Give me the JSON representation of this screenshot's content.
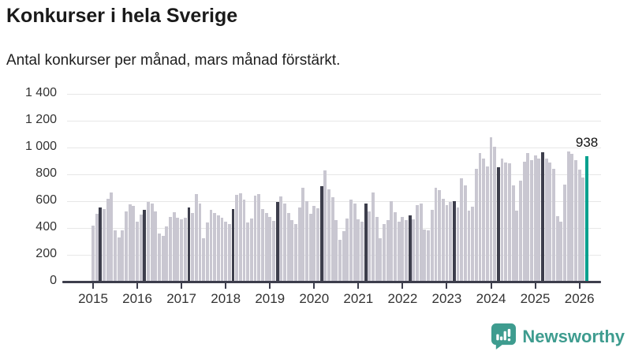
{
  "header": {
    "title": "Konkurser i hela Sverige",
    "subtitle": "Antal konkurser per månad, mars månad förstärkt."
  },
  "chart_data": {
    "type": "bar",
    "title": "Konkurser i hela Sverige",
    "subtitle": "Antal konkurser per månad, mars månad förstärkt.",
    "ylim": [
      0,
      1400
    ],
    "ytick_step": 200,
    "ytick_labels": [
      "0",
      "200",
      "400",
      "600",
      "800",
      "1 000",
      "1 200",
      "1 400"
    ],
    "grid": true,
    "start_month": "2015-01",
    "end_month": "2026-03",
    "x_tick_years": [
      "2015",
      "2016",
      "2017",
      "2018",
      "2019",
      "2020",
      "2021",
      "2022",
      "2023",
      "2024",
      "2025",
      "2026"
    ],
    "highlighted_month": "mars",
    "last_value_label": "938",
    "series": [
      {
        "name": "Antal konkurser per månad",
        "values": [
          420,
          505,
          555,
          540,
          615,
          665,
          385,
          330,
          380,
          525,
          575,
          565,
          445,
          500,
          535,
          595,
          585,
          525,
          360,
          340,
          410,
          485,
          515,
          475,
          465,
          475,
          555,
          510,
          655,
          580,
          325,
          440,
          535,
          510,
          495,
          475,
          450,
          430,
          540,
          645,
          660,
          610,
          440,
          470,
          640,
          655,
          540,
          510,
          480,
          455,
          595,
          635,
          580,
          510,
          460,
          430,
          555,
          700,
          600,
          505,
          565,
          545,
          710,
          830,
          690,
          630,
          460,
          310,
          375,
          470,
          610,
          580,
          465,
          445,
          585,
          525,
          665,
          480,
          325,
          430,
          460,
          600,
          520,
          450,
          480,
          460,
          495,
          465,
          570,
          585,
          390,
          385,
          535,
          700,
          685,
          620,
          570,
          595,
          600,
          555,
          770,
          720,
          530,
          560,
          840,
          960,
          920,
          860,
          1075,
          1005,
          855,
          915,
          890,
          880,
          715,
          530,
          755,
          895,
          960,
          905,
          940,
          920,
          965,
          915,
          890,
          840,
          490,
          445,
          725,
          970,
          955,
          905,
          835,
          775,
          938
        ]
      }
    ],
    "colors": {
      "bar_default": "#c9c7d1",
      "bar_march": "#3d3e4c",
      "bar_latest": "#00a08e",
      "grid": "#e7e7e7",
      "axis": "#3d3e4c",
      "text": "#333333"
    }
  },
  "footer": {
    "brand": "Newsworthy",
    "brand_color": "#3e9c8f",
    "logo_icon": "bar-chart-speech-bubble-icon"
  }
}
